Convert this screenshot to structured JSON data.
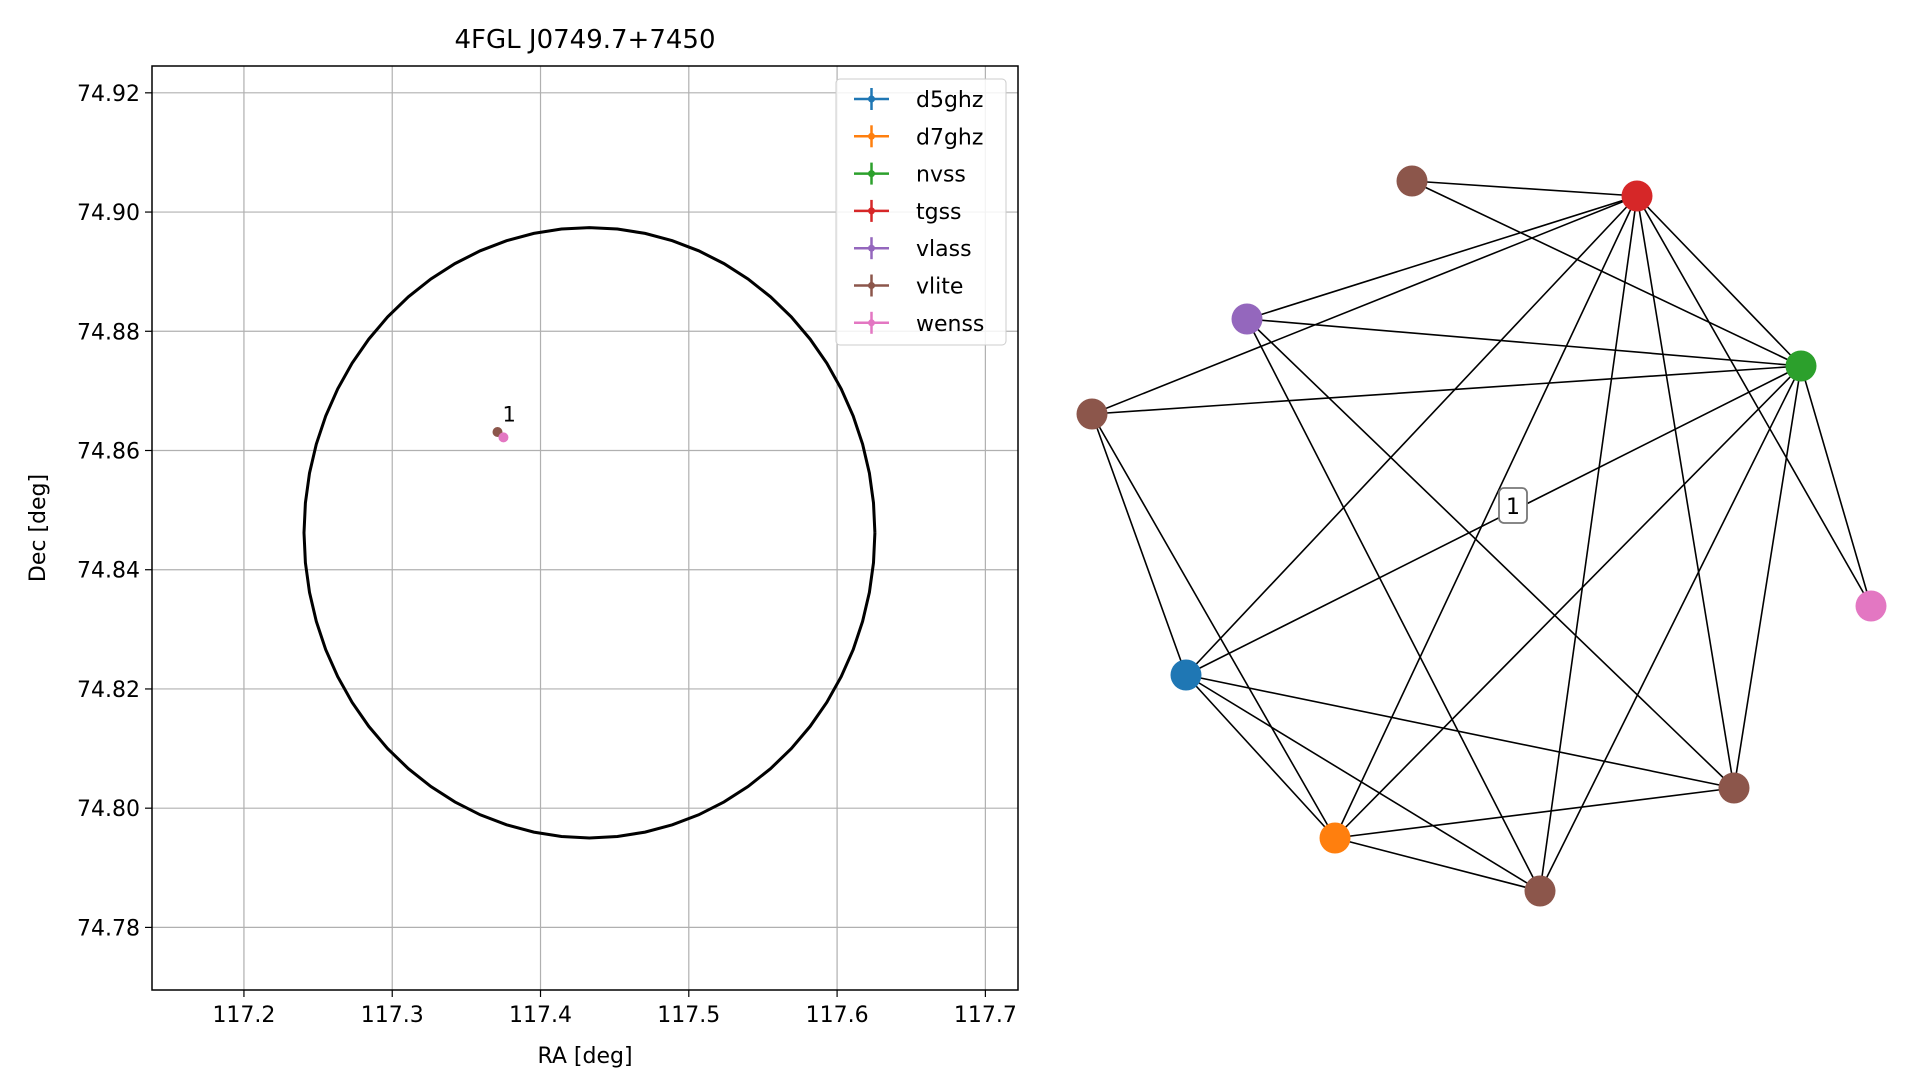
{
  "chart_data": [
    {
      "type": "scatter",
      "title": "4FGL J0749.7+7450",
      "xlabel": "RA [deg]",
      "ylabel": "Dec [deg]",
      "xlim": [
        117.138,
        117.722
      ],
      "ylim": [
        74.7695,
        74.9245
      ],
      "xticks": [
        117.2,
        117.3,
        117.4,
        117.5,
        117.6,
        117.7
      ],
      "yticks": [
        74.78,
        74.8,
        74.82,
        74.84,
        74.86,
        74.88,
        74.9,
        74.92
      ],
      "grid": true,
      "legend_position": "top-right",
      "series": [
        {
          "name": "d5ghz",
          "color": "#1f77b4",
          "points": []
        },
        {
          "name": "d7ghz",
          "color": "#ff7f0e",
          "points": []
        },
        {
          "name": "nvss",
          "color": "#2ca02c",
          "points": []
        },
        {
          "name": "tgss",
          "color": "#d62728",
          "points": []
        },
        {
          "name": "vlass",
          "color": "#9467bd",
          "points": []
        },
        {
          "name": "vlite",
          "color": "#8c564b",
          "points": [
            {
              "x": 117.371,
              "y": 74.8631
            }
          ]
        },
        {
          "name": "wenss",
          "color": "#e377c2",
          "points": [
            {
              "x": 117.375,
              "y": 74.8622
            }
          ]
        }
      ],
      "annotations": [
        {
          "text": "1",
          "x": 117.373,
          "y": 74.8635
        }
      ],
      "circle": {
        "center_x": 117.433,
        "center_y": 74.8462,
        "radius_x": 0.1925,
        "radius_y": 0.0512,
        "color": "#000000"
      }
    },
    {
      "type": "network",
      "nodes": [
        {
          "id": "brown-top",
          "color": "#8c564b"
        },
        {
          "id": "red",
          "color": "#d62728"
        },
        {
          "id": "purple",
          "color": "#9467bd"
        },
        {
          "id": "green",
          "color": "#2ca02c"
        },
        {
          "id": "brown-left",
          "color": "#8c564b"
        },
        {
          "id": "pink",
          "color": "#e377c2"
        },
        {
          "id": "blue",
          "color": "#1f77b4"
        },
        {
          "id": "brown-right",
          "color": "#8c564b"
        },
        {
          "id": "orange",
          "color": "#ff7f0e"
        },
        {
          "id": "brown-bottom",
          "color": "#8c564b"
        }
      ],
      "edges": [
        [
          "brown-top",
          "red"
        ],
        [
          "brown-top",
          "green"
        ],
        [
          "red",
          "purple"
        ],
        [
          "red",
          "brown-left"
        ],
        [
          "red",
          "green"
        ],
        [
          "red",
          "pink"
        ],
        [
          "red",
          "blue"
        ],
        [
          "red",
          "orange"
        ],
        [
          "red",
          "brown-bottom"
        ],
        [
          "red",
          "brown-right"
        ],
        [
          "purple",
          "green"
        ],
        [
          "purple",
          "brown-bottom"
        ],
        [
          "purple",
          "brown-right"
        ],
        [
          "brown-left",
          "green"
        ],
        [
          "brown-left",
          "blue"
        ],
        [
          "brown-left",
          "orange"
        ],
        [
          "green",
          "pink"
        ],
        [
          "green",
          "blue"
        ],
        [
          "green",
          "orange"
        ],
        [
          "green",
          "brown-bottom"
        ],
        [
          "green",
          "brown-right"
        ],
        [
          "blue",
          "orange"
        ],
        [
          "blue",
          "brown-bottom"
        ],
        [
          "blue",
          "brown-right"
        ],
        [
          "orange",
          "brown-bottom"
        ],
        [
          "orange",
          "brown-right"
        ]
      ],
      "label": "1"
    }
  ]
}
